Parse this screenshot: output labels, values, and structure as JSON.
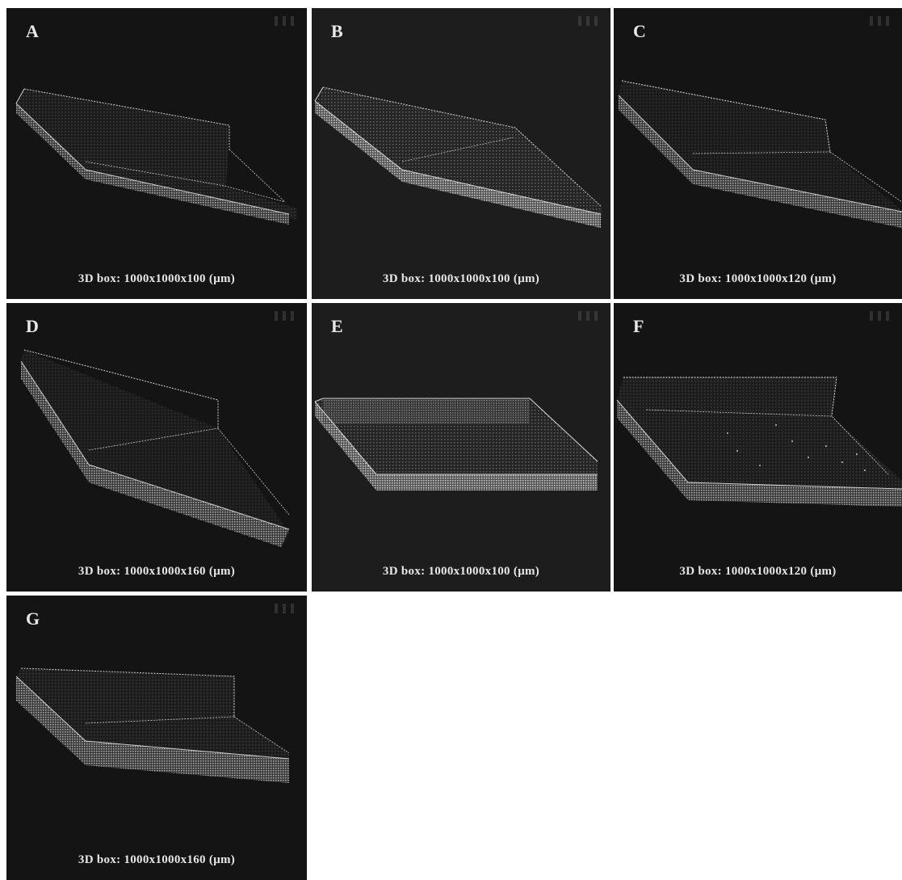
{
  "figure": {
    "panels": [
      {
        "letter": "A",
        "caption": "3D box: 1000x1000x100 (μm)"
      },
      {
        "letter": "B",
        "caption": "3D box: 1000x1000x100 (μm)"
      },
      {
        "letter": "C",
        "caption": "3D box: 1000x1000x120 (μm)"
      },
      {
        "letter": "D",
        "caption": "3D box: 1000x1000x160 (μm)"
      },
      {
        "letter": "E",
        "caption": "3D box: 1000x1000x100 (μm)"
      },
      {
        "letter": "F",
        "caption": "3D box: 1000x1000x120 (μm)"
      },
      {
        "letter": "G",
        "caption": "3D box: 1000x1000x160 (μm)"
      }
    ]
  },
  "colors": {
    "panel_background": "#141414",
    "panel_background_alt": "#1d1d1d",
    "slab_fill": "#8a8a8a",
    "wire": "#cfcfcf",
    "label_text": "#e8e8e8"
  }
}
